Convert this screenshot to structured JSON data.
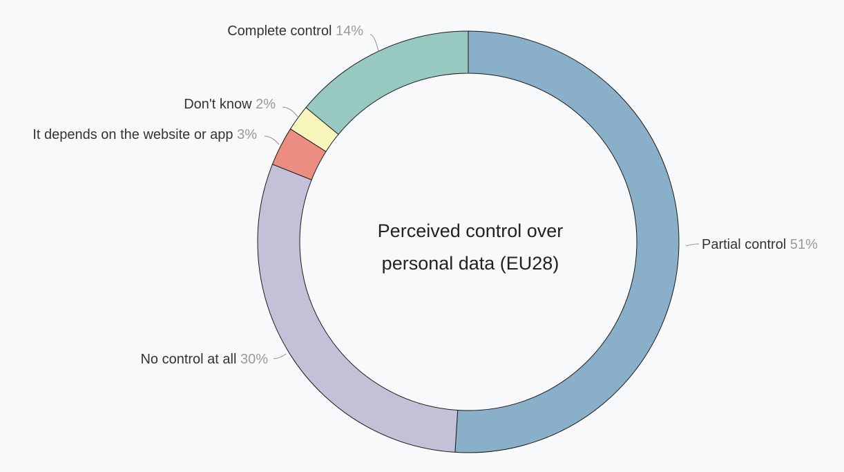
{
  "chart_data": {
    "type": "pie",
    "style": "donut",
    "title_lines": [
      "Perceived control over",
      "personal data (EU28)"
    ],
    "slices": [
      {
        "label": "Partial control",
        "value": 51,
        "value_label": "51%",
        "color": "#8aafc9"
      },
      {
        "label": "No control at all",
        "value": 30,
        "value_label": "30%",
        "color": "#c3c1d8"
      },
      {
        "label": "It depends on the website or app",
        "value": 3,
        "value_label": "3%",
        "color": "#ec8d81"
      },
      {
        "label": "Don't know",
        "value": 2,
        "value_label": "2%",
        "color": "#f8f6bd"
      },
      {
        "label": "Complete control",
        "value": 14,
        "value_label": "14%",
        "color": "#98c9c0"
      }
    ]
  }
}
